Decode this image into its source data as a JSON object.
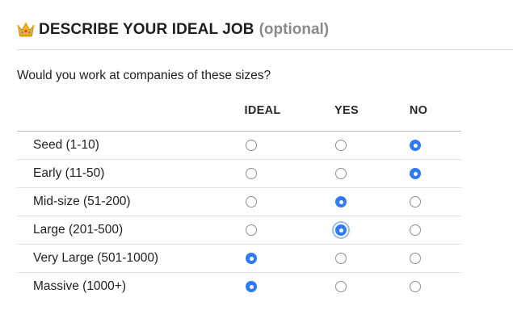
{
  "section": {
    "icon": "crown-icon",
    "title": "DESCRIBE YOUR IDEAL JOB",
    "optional": "(optional)"
  },
  "question": "Would you work at companies of these sizes?",
  "columns": [
    "IDEAL",
    "YES",
    "NO"
  ],
  "rows": [
    {
      "label": "Seed (1-10)",
      "selected": "NO"
    },
    {
      "label": "Early (11-50)",
      "selected": "NO"
    },
    {
      "label": "Mid-size (51-200)",
      "selected": "YES"
    },
    {
      "label": "Large (201-500)",
      "selected": "YES",
      "focused": true
    },
    {
      "label": "Very Large (501-1000)",
      "selected": "IDEAL"
    },
    {
      "label": "Massive (1000+)",
      "selected": "IDEAL"
    }
  ],
  "colors": {
    "accent": "#2f7bf5",
    "text": "#1f1f1f",
    "muted": "#8a8a8a",
    "crown": "#f2b51f"
  }
}
